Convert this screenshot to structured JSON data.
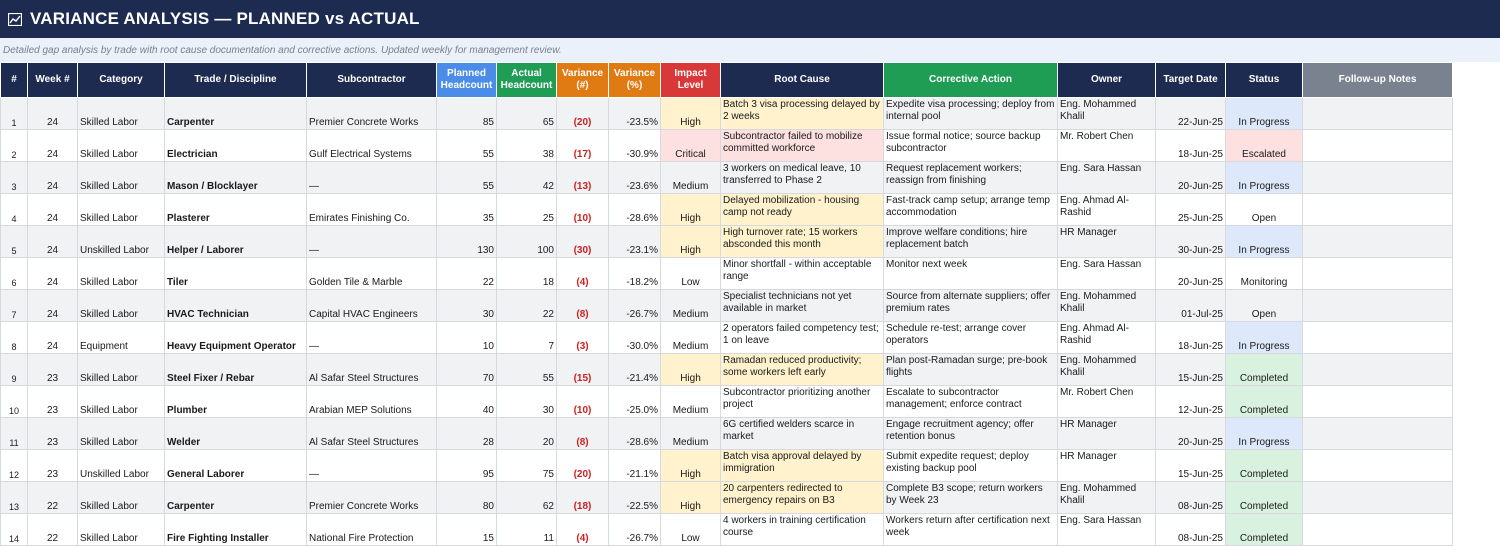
{
  "header": {
    "title": "VARIANCE ANALYSIS — PLANNED vs ACTUAL",
    "subtitle": "Detailed gap analysis by trade with root cause documentation and corrective actions. Updated weekly for management review.",
    "icon": "chart-icon"
  },
  "colors": {
    "title_bg": "#1c2b4f",
    "header_dark": "#1c2b4f",
    "header_blue": "#4a8ce8",
    "header_green": "#1f9d55",
    "header_orange": "#e07b14",
    "header_red": "#d93838",
    "header_gray": "#7a8290",
    "impact_high": "#fff2cc",
    "critical": "#fde0e0",
    "in_progress": "#dde9fa",
    "completed": "#d9f2df",
    "variance_text": "#cc1f1f"
  },
  "columns": [
    {
      "label": "#",
      "color": "dark"
    },
    {
      "label": "Week #",
      "color": "dark"
    },
    {
      "label": "Category",
      "color": "dark"
    },
    {
      "label": "Trade / Discipline",
      "color": "dark"
    },
    {
      "label": "Subcontractor",
      "color": "dark"
    },
    {
      "label": "Planned Headcount",
      "color": "blue"
    },
    {
      "label": "Actual Headcount",
      "color": "green"
    },
    {
      "label": "Variance (#)",
      "color": "orange"
    },
    {
      "label": "Variance (%)",
      "color": "orange"
    },
    {
      "label": "Impact Level",
      "color": "red"
    },
    {
      "label": "Root Cause",
      "color": "dark"
    },
    {
      "label": "Corrective Action",
      "color": "green"
    },
    {
      "label": "Owner",
      "color": "dark"
    },
    {
      "label": "Target Date",
      "color": "dark"
    },
    {
      "label": "Status",
      "color": "dark"
    },
    {
      "label": "Follow-up Notes",
      "color": "gray"
    }
  ],
  "rows": [
    {
      "num": "1",
      "week": "24",
      "category": "Skilled Labor",
      "trade": "Carpenter",
      "sub": "Premier Concrete Works",
      "planned": "85",
      "actual": "65",
      "var": "(20)",
      "pct": "-23.5%",
      "impact": "High",
      "cause": "Batch 3 visa processing delayed by 2 weeks",
      "action": "Expedite visa processing; deploy from internal pool",
      "owner": "Eng. Mohammed Khalil",
      "target": "22-Jun-25",
      "status": "In Progress",
      "notes": ""
    },
    {
      "num": "2",
      "week": "24",
      "category": "Skilled Labor",
      "trade": "Electrician",
      "sub": "Gulf Electrical Systems",
      "planned": "55",
      "actual": "38",
      "var": "(17)",
      "pct": "-30.9%",
      "impact": "Critical",
      "cause": "Subcontractor failed to mobilize committed workforce",
      "action": "Issue formal notice; source backup subcontractor",
      "owner": "Mr. Robert Chen",
      "target": "18-Jun-25",
      "status": "Escalated",
      "notes": ""
    },
    {
      "num": "3",
      "week": "24",
      "category": "Skilled Labor",
      "trade": "Mason / Blocklayer",
      "sub": "—",
      "planned": "55",
      "actual": "42",
      "var": "(13)",
      "pct": "-23.6%",
      "impact": "Medium",
      "cause": "3 workers on medical leave, 10 transferred to Phase 2",
      "action": "Request replacement workers; reassign from finishing",
      "owner": "Eng. Sara Hassan",
      "target": "20-Jun-25",
      "status": "In Progress",
      "notes": ""
    },
    {
      "num": "4",
      "week": "24",
      "category": "Skilled Labor",
      "trade": "Plasterer",
      "sub": "Emirates Finishing Co.",
      "planned": "35",
      "actual": "25",
      "var": "(10)",
      "pct": "-28.6%",
      "impact": "High",
      "cause": "Delayed mobilization - housing camp not ready",
      "action": "Fast-track camp setup; arrange temp accommodation",
      "owner": "Eng. Ahmad Al-Rashid",
      "target": "25-Jun-25",
      "status": "Open",
      "notes": ""
    },
    {
      "num": "5",
      "week": "24",
      "category": "Unskilled Labor",
      "trade": "Helper / Laborer",
      "sub": "—",
      "planned": "130",
      "actual": "100",
      "var": "(30)",
      "pct": "-23.1%",
      "impact": "High",
      "cause": "High turnover rate; 15 workers absconded this month",
      "action": "Improve welfare conditions; hire replacement batch",
      "owner": "HR Manager",
      "target": "30-Jun-25",
      "status": "In Progress",
      "notes": ""
    },
    {
      "num": "6",
      "week": "24",
      "category": "Skilled Labor",
      "trade": "Tiler",
      "sub": "Golden Tile & Marble",
      "planned": "22",
      "actual": "18",
      "var": "(4)",
      "pct": "-18.2%",
      "impact": "Low",
      "cause": "Minor shortfall - within acceptable range",
      "action": "Monitor next week",
      "owner": "Eng. Sara Hassan",
      "target": "20-Jun-25",
      "status": "Monitoring",
      "notes": ""
    },
    {
      "num": "7",
      "week": "24",
      "category": "Skilled Labor",
      "trade": "HVAC Technician",
      "sub": "Capital HVAC Engineers",
      "planned": "30",
      "actual": "22",
      "var": "(8)",
      "pct": "-26.7%",
      "impact": "Medium",
      "cause": "Specialist technicians not yet available in market",
      "action": "Source from alternate suppliers; offer premium rates",
      "owner": "Eng. Mohammed Khalil",
      "target": "01-Jul-25",
      "status": "Open",
      "notes": ""
    },
    {
      "num": "8",
      "week": "24",
      "category": "Equipment",
      "trade": "Heavy Equipment Operator",
      "sub": "—",
      "planned": "10",
      "actual": "7",
      "var": "(3)",
      "pct": "-30.0%",
      "impact": "Medium",
      "cause": "2 operators failed competency test; 1 on leave",
      "action": "Schedule re-test; arrange cover operators",
      "owner": "Eng. Ahmad Al-Rashid",
      "target": "18-Jun-25",
      "status": "In Progress",
      "notes": ""
    },
    {
      "num": "9",
      "week": "23",
      "category": "Skilled Labor",
      "trade": "Steel Fixer / Rebar",
      "sub": "Al Safar Steel Structures",
      "planned": "70",
      "actual": "55",
      "var": "(15)",
      "pct": "-21.4%",
      "impact": "High",
      "cause": "Ramadan reduced productivity; some workers left early",
      "action": "Plan post-Ramadan surge; pre-book flights",
      "owner": "Eng. Mohammed Khalil",
      "target": "15-Jun-25",
      "status": "Completed",
      "notes": ""
    },
    {
      "num": "10",
      "week": "23",
      "category": "Skilled Labor",
      "trade": "Plumber",
      "sub": "Arabian MEP Solutions",
      "planned": "40",
      "actual": "30",
      "var": "(10)",
      "pct": "-25.0%",
      "impact": "Medium",
      "cause": "Subcontractor prioritizing another project",
      "action": "Escalate to subcontractor management; enforce contract",
      "owner": "Mr. Robert Chen",
      "target": "12-Jun-25",
      "status": "Completed",
      "notes": ""
    },
    {
      "num": "11",
      "week": "23",
      "category": "Skilled Labor",
      "trade": "Welder",
      "sub": "Al Safar Steel Structures",
      "planned": "28",
      "actual": "20",
      "var": "(8)",
      "pct": "-28.6%",
      "impact": "Medium",
      "cause": "6G certified welders scarce in market",
      "action": "Engage recruitment agency; offer retention bonus",
      "owner": "HR Manager",
      "target": "20-Jun-25",
      "status": "In Progress",
      "notes": ""
    },
    {
      "num": "12",
      "week": "23",
      "category": "Unskilled Labor",
      "trade": "General Laborer",
      "sub": "—",
      "planned": "95",
      "actual": "75",
      "var": "(20)",
      "pct": "-21.1%",
      "impact": "High",
      "cause": "Batch visa approval delayed by immigration",
      "action": "Submit expedite request; deploy existing backup pool",
      "owner": "HR Manager",
      "target": "15-Jun-25",
      "status": "Completed",
      "notes": ""
    },
    {
      "num": "13",
      "week": "22",
      "category": "Skilled Labor",
      "trade": "Carpenter",
      "sub": "Premier Concrete Works",
      "planned": "80",
      "actual": "62",
      "var": "(18)",
      "pct": "-22.5%",
      "impact": "High",
      "cause": "20 carpenters redirected to emergency repairs on B3",
      "action": "Complete B3 scope; return workers by Week 23",
      "owner": "Eng. Mohammed Khalil",
      "target": "08-Jun-25",
      "status": "Completed",
      "notes": ""
    },
    {
      "num": "14",
      "week": "22",
      "category": "Skilled Labor",
      "trade": "Fire Fighting Installer",
      "sub": "National Fire Protection",
      "planned": "15",
      "actual": "11",
      "var": "(4)",
      "pct": "-26.7%",
      "impact": "Low",
      "cause": "4 workers in training certification course",
      "action": "Workers return after certification next week",
      "owner": "Eng. Sara Hassan",
      "target": "08-Jun-25",
      "status": "Completed",
      "notes": ""
    }
  ]
}
